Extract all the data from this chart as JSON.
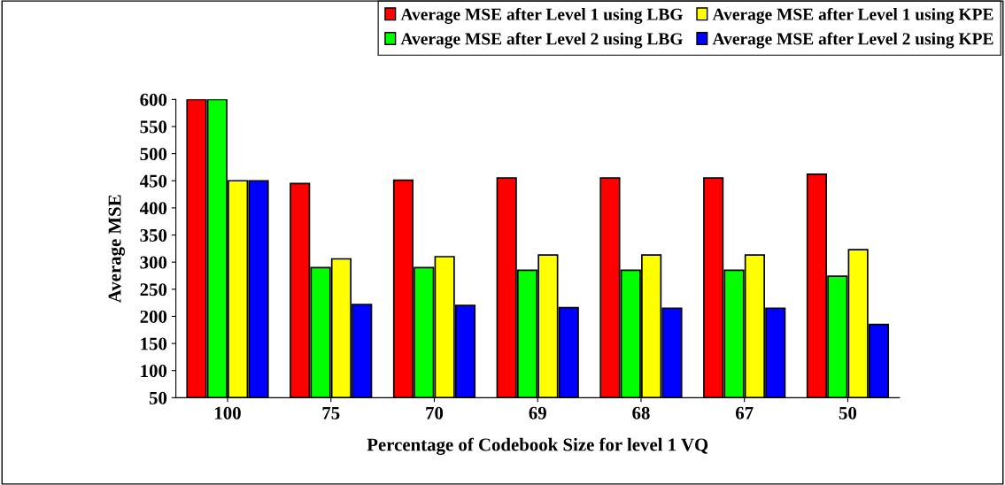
{
  "chart_data": {
    "type": "bar",
    "xlabel": "Percentage of Codebook Size for level 1 VQ",
    "ylabel": "Average MSE",
    "categories": [
      "100",
      "75",
      "70",
      "69",
      "68",
      "67",
      "50"
    ],
    "series": [
      {
        "name": "Average MSE after Level 1 using LBG",
        "color": "#ff0000",
        "values": [
          600,
          445,
          451,
          455,
          455,
          455,
          462
        ]
      },
      {
        "name": "Average MSE after Level 2 using LBG",
        "color": "#00ff00",
        "values": [
          600,
          290,
          290,
          285,
          285,
          285,
          274
        ]
      },
      {
        "name": "Average MSE after Level 1 using KPE",
        "color": "#ffff00",
        "values": [
          450,
          306,
          310,
          313,
          313,
          313,
          323
        ]
      },
      {
        "name": "Average MSE after Level 2 using KPE",
        "color": "#0000ff",
        "values": [
          450,
          222,
          220,
          216,
          215,
          215,
          185
        ]
      }
    ],
    "ylim": [
      50,
      600
    ],
    "yticks": [
      50,
      100,
      150,
      200,
      250,
      300,
      350,
      400,
      450,
      500,
      550,
      600
    ],
    "grid": false,
    "legend": "top right"
  }
}
